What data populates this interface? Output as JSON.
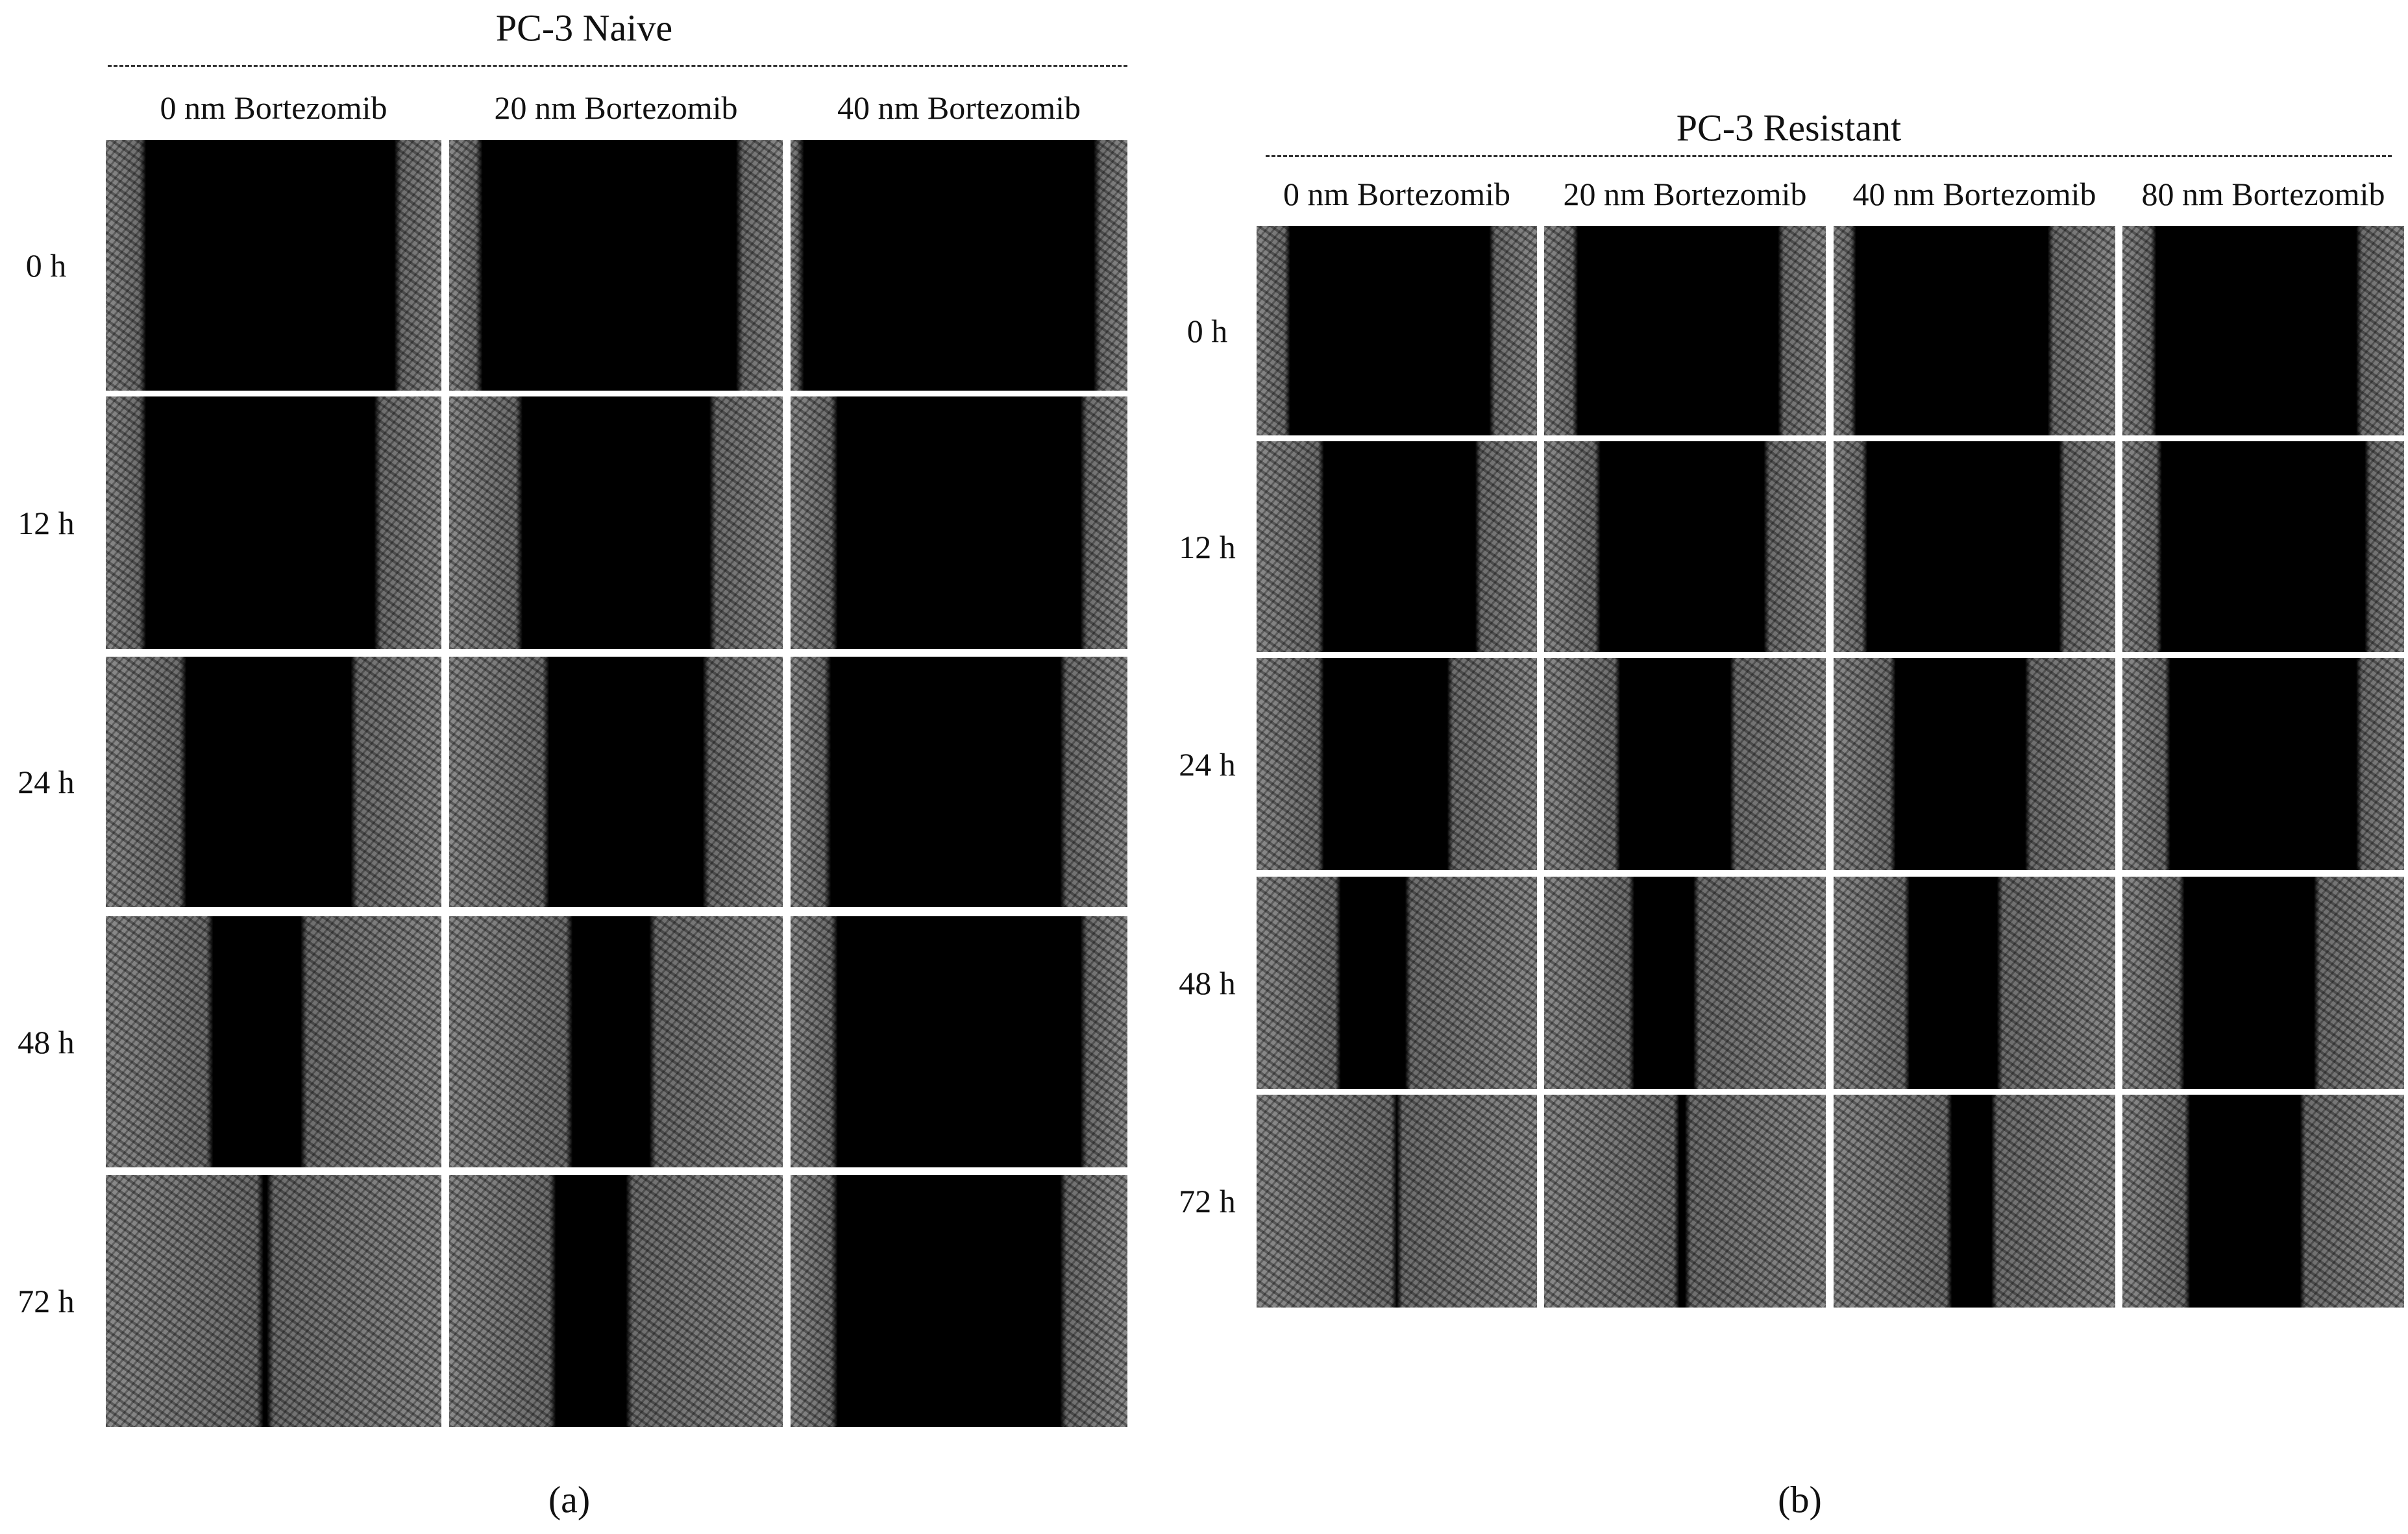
{
  "panels": [
    {
      "title": "PC-3 Naive",
      "columns": [
        "0 nm Bortezomib",
        "20 nm Bortezomib",
        "40 nm Bortezomib"
      ],
      "rows": [
        "0 h",
        "12 h",
        "24 h",
        "48 h",
        "72 h"
      ],
      "caption": "(a)"
    },
    {
      "title": "PC-3 Resistant",
      "columns": [
        "0 nm Bortezomib",
        "20 nm Bortezomib",
        "40 nm Bortezomib",
        "80 nm Bortezomib"
      ],
      "rows": [
        "0 h",
        "12 h",
        "24 h",
        "48 h",
        "72 h"
      ],
      "caption": "(b)"
    }
  ]
}
